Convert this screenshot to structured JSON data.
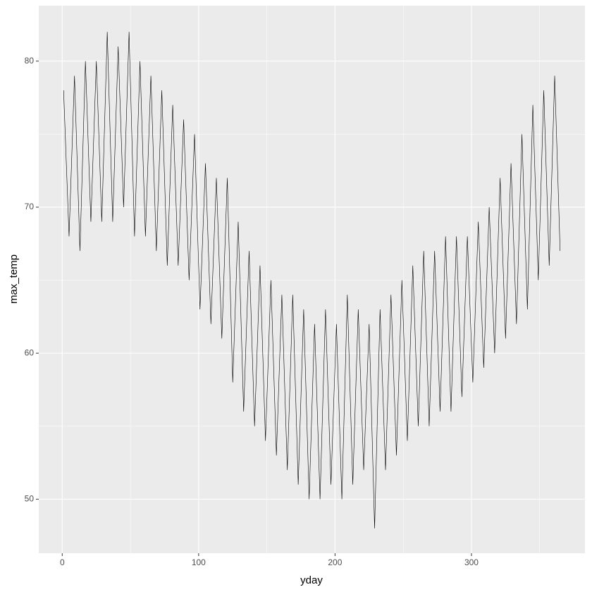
{
  "chart_data": {
    "type": "line",
    "x_label": "yday",
    "y_label": "max_temp",
    "x": [
      1,
      5,
      9,
      13,
      17,
      21,
      25,
      29,
      33,
      37,
      41,
      45,
      49,
      53,
      57,
      61,
      65,
      69,
      73,
      77,
      81,
      85,
      89,
      93,
      97,
      101,
      105,
      109,
      113,
      117,
      121,
      125,
      129,
      133,
      137,
      141,
      145,
      149,
      153,
      157,
      161,
      165,
      169,
      173,
      177,
      181,
      185,
      189,
      193,
      197,
      201,
      205,
      209,
      213,
      217,
      221,
      225,
      229,
      233,
      237,
      241,
      245,
      249,
      253,
      257,
      261,
      265,
      269,
      273,
      277,
      281,
      285,
      289,
      293,
      297,
      301,
      305,
      309,
      313,
      317,
      321,
      325,
      329,
      333,
      337,
      341,
      345,
      349,
      353,
      357,
      361,
      365
    ],
    "values": [
      78,
      68,
      79,
      67,
      80,
      69,
      80,
      69,
      82,
      69,
      81,
      70,
      82,
      68,
      80,
      68,
      79,
      67,
      78,
      66,
      77,
      66,
      76,
      65,
      75,
      63,
      73,
      62,
      72,
      61,
      72,
      58,
      69,
      56,
      67,
      55,
      66,
      54,
      65,
      53,
      64,
      52,
      64,
      51,
      63,
      50,
      62,
      50,
      63,
      51,
      62,
      50,
      64,
      51,
      63,
      52,
      62,
      48,
      63,
      52,
      64,
      53,
      65,
      54,
      66,
      55,
      67,
      55,
      67,
      56,
      68,
      56,
      68,
      57,
      68,
      58,
      69,
      59,
      70,
      60,
      72,
      61,
      73,
      62,
      75,
      63,
      77,
      65,
      78,
      66,
      79,
      67
    ],
    "color": "#000000",
    "xlim": [
      -17.2,
      383.2
    ],
    "xticks": [
      0,
      100,
      200,
      300
    ],
    "ylim": [
      46.3,
      83.8
    ],
    "yticks": [
      50,
      60,
      70,
      80
    ],
    "grid": true
  }
}
